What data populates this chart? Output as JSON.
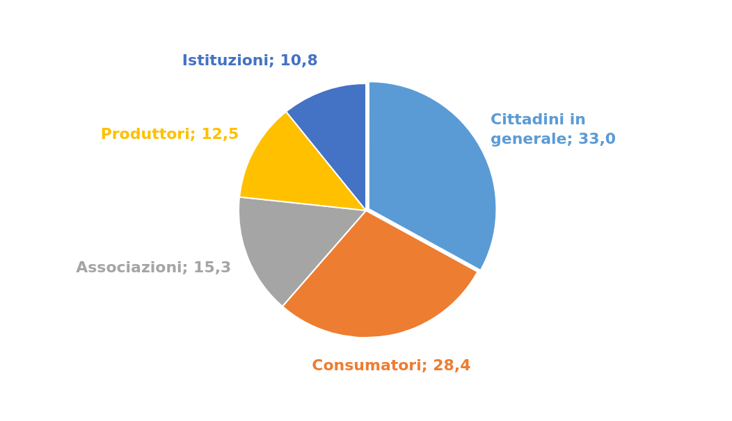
{
  "chart_data": {
    "type": "pie",
    "categories": [
      "Cittadini in generale",
      "Consumatori",
      "Associazioni",
      "Produttori",
      "Istituzioni"
    ],
    "values": [
      33.0,
      28.4,
      15.3,
      12.5,
      10.8
    ],
    "value_labels": [
      "33,0",
      "28,4",
      "15,3",
      "12,5",
      "10,8"
    ],
    "colors": [
      "#5b9bd5",
      "#ed7d31",
      "#a5a5a5",
      "#ffc000",
      "#4472c4"
    ],
    "legend": false
  }
}
